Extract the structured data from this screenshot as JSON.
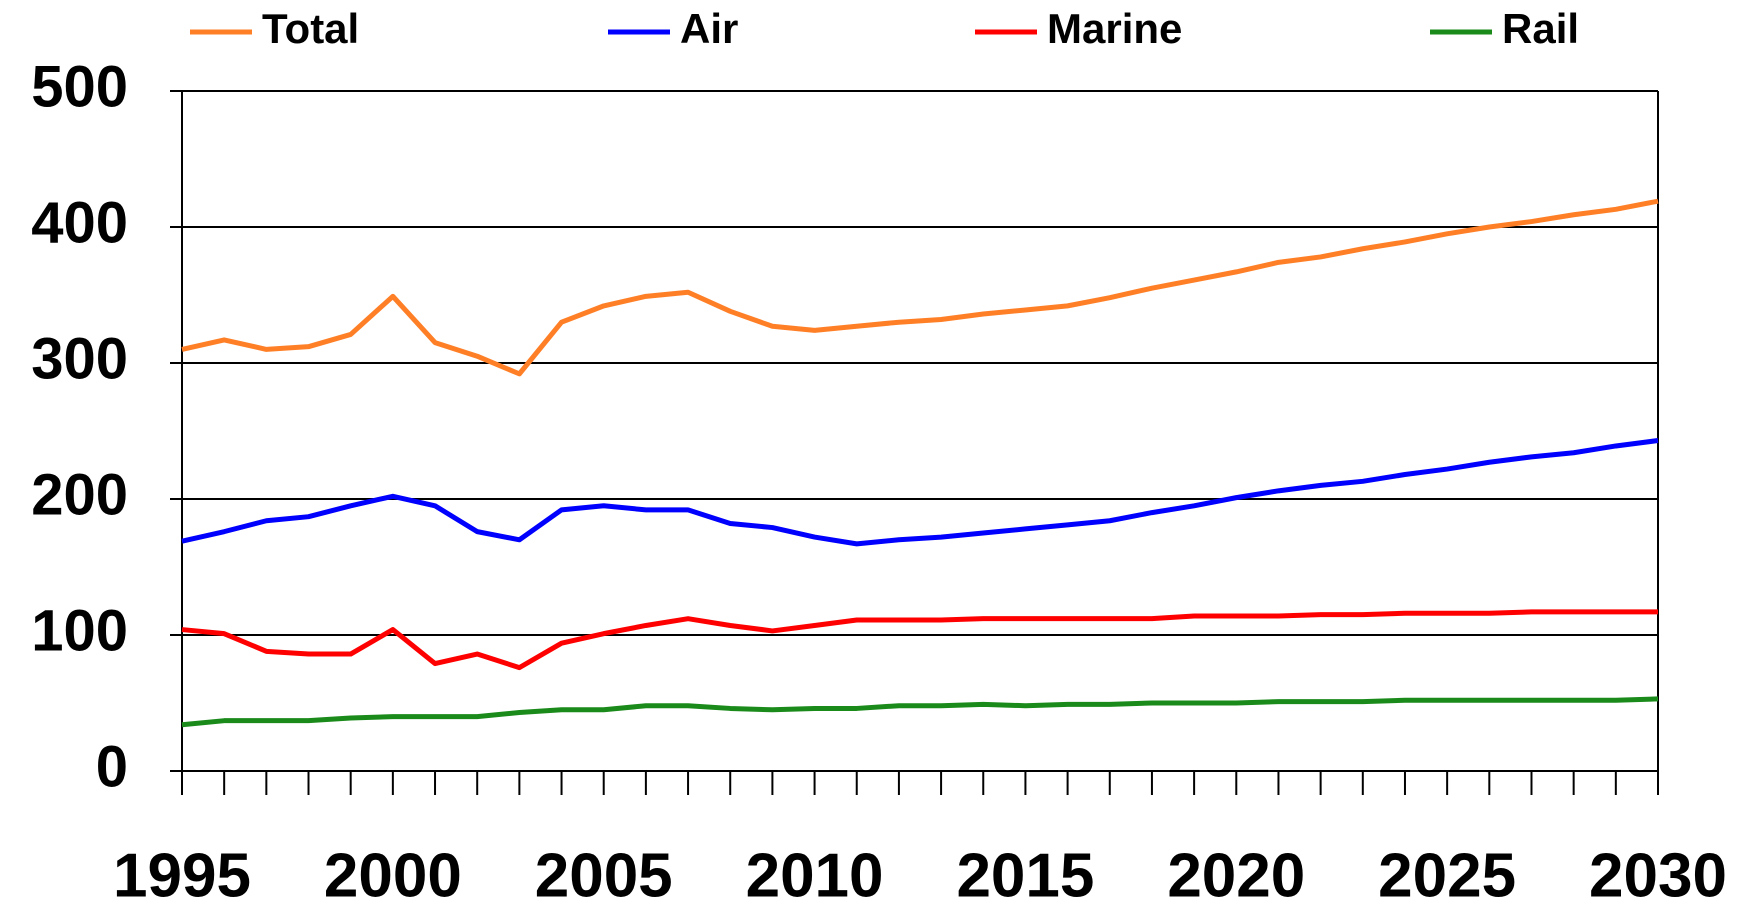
{
  "chart_data": {
    "type": "line",
    "x": [
      1995,
      1996,
      1997,
      1998,
      1999,
      2000,
      2001,
      2002,
      2003,
      2004,
      2005,
      2006,
      2007,
      2008,
      2009,
      2010,
      2011,
      2012,
      2013,
      2014,
      2015,
      2016,
      2017,
      2018,
      2019,
      2020,
      2021,
      2022,
      2023,
      2024,
      2025,
      2026,
      2027,
      2028,
      2029,
      2030
    ],
    "xlim": [
      1995,
      2030
    ],
    "xticks": [
      1995,
      2000,
      2005,
      2010,
      2015,
      2020,
      2025,
      2030
    ],
    "ylim": [
      0,
      500
    ],
    "yticks": [
      0,
      100,
      200,
      300,
      400,
      500
    ],
    "grid": true,
    "legend": "top",
    "series": [
      {
        "name": "Total",
        "color": "#ff7f27",
        "values": [
          310,
          317,
          310,
          312,
          321,
          349,
          315,
          305,
          292,
          330,
          342,
          349,
          352,
          338,
          327,
          324,
          327,
          330,
          332,
          336,
          339,
          342,
          348,
          355,
          361,
          367,
          374,
          378,
          384,
          389,
          395,
          400,
          404,
          409,
          413,
          419
        ]
      },
      {
        "name": "Air",
        "color": "#0000ff",
        "values": [
          169,
          176,
          184,
          187,
          195,
          202,
          195,
          176,
          170,
          192,
          195,
          192,
          192,
          182,
          179,
          172,
          167,
          170,
          172,
          175,
          178,
          181,
          184,
          190,
          195,
          201,
          206,
          210,
          213,
          218,
          222,
          227,
          231,
          234,
          239,
          243
        ]
      },
      {
        "name": "Marine",
        "color": "#ff0000",
        "values": [
          104,
          101,
          88,
          86,
          86,
          104,
          79,
          86,
          76,
          94,
          101,
          107,
          112,
          107,
          103,
          107,
          111,
          111,
          111,
          112,
          112,
          112,
          112,
          112,
          114,
          114,
          114,
          115,
          115,
          116,
          116,
          116,
          117,
          117,
          117,
          117
        ]
      },
      {
        "name": "Rail",
        "color": "#1a8a1a",
        "values": [
          34,
          37,
          37,
          37,
          39,
          40,
          40,
          40,
          43,
          45,
          45,
          48,
          48,
          46,
          45,
          46,
          46,
          48,
          48,
          49,
          48,
          49,
          49,
          50,
          50,
          50,
          51,
          51,
          51,
          52,
          52,
          52,
          52,
          52,
          52,
          53
        ]
      }
    ]
  }
}
